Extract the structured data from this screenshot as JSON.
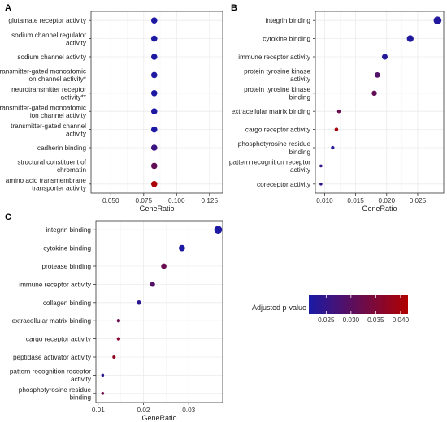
{
  "legend": {
    "title": "Adjusted p-value",
    "color_low": "#1a1aa6",
    "color_high": "#b00000",
    "range": [
      0.0215,
      0.0415
    ],
    "ticks": [
      "0.025",
      "0.030",
      "0.035",
      "0.040"
    ],
    "tick_values": [
      0.025,
      0.03,
      0.035,
      0.04
    ]
  },
  "chart_data": [
    {
      "panel": "A",
      "type": "scatter",
      "xlabel": "GeneRatio",
      "xlim": [
        0.035,
        0.135
      ],
      "xticks": [
        0.05,
        0.075,
        0.1,
        0.125
      ],
      "xtick_labels": [
        "0.050",
        "0.075",
        "0.100",
        "0.125"
      ],
      "points": [
        {
          "label": [
            "glutamate receptor activity"
          ],
          "x": 0.083,
          "padj": 0.022,
          "size": 2
        },
        {
          "label": [
            "sodium channel regulator",
            "activity"
          ],
          "x": 0.083,
          "padj": 0.022,
          "size": 2
        },
        {
          "label": [
            "sodium channel activity"
          ],
          "x": 0.083,
          "padj": 0.022,
          "size": 2
        },
        {
          "label": [
            "transmitter-gated monoatomic",
            "ion channel activity*"
          ],
          "x": 0.083,
          "padj": 0.022,
          "size": 2
        },
        {
          "label": [
            "neurotransmitter receptor",
            "activity**"
          ],
          "x": 0.083,
          "padj": 0.022,
          "size": 2
        },
        {
          "label": [
            "transmitter-gated monoatomic",
            "ion channel activity"
          ],
          "x": 0.083,
          "padj": 0.022,
          "size": 2
        },
        {
          "label": [
            "transmitter-gated channel",
            "activity"
          ],
          "x": 0.083,
          "padj": 0.022,
          "size": 2
        },
        {
          "label": [
            "cadherin binding"
          ],
          "x": 0.083,
          "padj": 0.026,
          "size": 2
        },
        {
          "label": [
            "structural constituent of",
            "chromatin"
          ],
          "x": 0.083,
          "padj": 0.031,
          "size": 2
        },
        {
          "label": [
            "amino acid transmembrane",
            "transporter activity"
          ],
          "x": 0.083,
          "padj": 0.041,
          "size": 2
        }
      ]
    },
    {
      "panel": "B",
      "type": "scatter",
      "xlabel": "GeneRatio",
      "xlim": [
        0.0085,
        0.0292
      ],
      "xticks": [
        0.01,
        0.015,
        0.02,
        0.025
      ],
      "xtick_labels": [
        "0.010",
        "0.015",
        "0.020",
        "0.025"
      ],
      "points": [
        {
          "label": [
            "integrin binding"
          ],
          "x": 0.0282,
          "padj": 0.0225,
          "size": 28
        },
        {
          "label": [
            "cytokine binding"
          ],
          "x": 0.0238,
          "padj": 0.0225,
          "size": 24
        },
        {
          "label": [
            "immune receptor activity"
          ],
          "x": 0.0197,
          "padj": 0.0228,
          "size": 20
        },
        {
          "label": [
            "protein tyrosine kinase",
            "activity"
          ],
          "x": 0.0185,
          "padj": 0.029,
          "size": 19
        },
        {
          "label": [
            "protein tyrosine kinase",
            "binding"
          ],
          "x": 0.018,
          "padj": 0.031,
          "size": 18
        },
        {
          "label": [
            "extracellular matrix binding"
          ],
          "x": 0.0123,
          "padj": 0.032,
          "size": 12
        },
        {
          "label": [
            "cargo receptor activity"
          ],
          "x": 0.0119,
          "padj": 0.04,
          "size": 12
        },
        {
          "label": [
            "phosphotyrosine residue",
            "binding"
          ],
          "x": 0.0113,
          "padj": 0.023,
          "size": 11
        },
        {
          "label": [
            "pattern recognition receptor",
            "activity"
          ],
          "x": 0.0094,
          "padj": 0.025,
          "size": 9
        },
        {
          "label": [
            "coreceptor activity"
          ],
          "x": 0.0094,
          "padj": 0.025,
          "size": 9
        }
      ]
    },
    {
      "panel": "C",
      "type": "scatter",
      "xlabel": "GeneRatio",
      "xlim": [
        0.0095,
        0.0375
      ],
      "xticks": [
        0.01,
        0.02,
        0.03
      ],
      "xtick_labels": [
        "0.01",
        "0.02",
        "0.03"
      ],
      "points": [
        {
          "label": [
            "integrin binding"
          ],
          "x": 0.0365,
          "padj": 0.022,
          "size": 36
        },
        {
          "label": [
            "cytokine binding"
          ],
          "x": 0.0285,
          "padj": 0.022,
          "size": 28
        },
        {
          "label": [
            "protease binding"
          ],
          "x": 0.0245,
          "padj": 0.032,
          "size": 24
        },
        {
          "label": [
            "immune receptor activity"
          ],
          "x": 0.022,
          "padj": 0.029,
          "size": 22
        },
        {
          "label": [
            "collagen binding"
          ],
          "x": 0.019,
          "padj": 0.024,
          "size": 19
        },
        {
          "label": [
            "extracellular matrix binding"
          ],
          "x": 0.0145,
          "padj": 0.032,
          "size": 14
        },
        {
          "label": [
            "cargo receptor activity"
          ],
          "x": 0.0145,
          "padj": 0.036,
          "size": 14
        },
        {
          "label": [
            "peptidase activator activity"
          ],
          "x": 0.0135,
          "padj": 0.037,
          "size": 13
        },
        {
          "label": [
            "pattern recognition receptor",
            "activity"
          ],
          "x": 0.011,
          "padj": 0.024,
          "size": 11
        },
        {
          "label": [
            "phosphotyrosine residue",
            "binding"
          ],
          "x": 0.011,
          "padj": 0.033,
          "size": 11
        }
      ]
    }
  ]
}
